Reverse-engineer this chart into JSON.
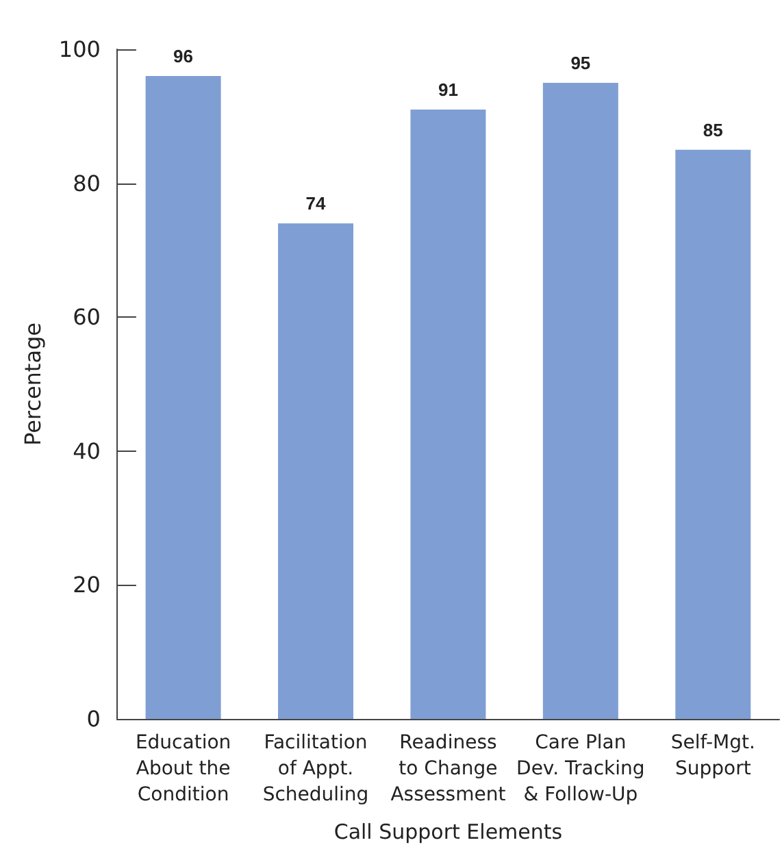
{
  "chart_data": {
    "type": "bar",
    "xlabel": "Call Support Elements",
    "ylabel": "Percentage",
    "categories": [
      "Education\nAbout the\nCondition",
      "Facilitation\nof Appt.\nScheduling",
      "Readiness\nto Change\nAssessment",
      "Care Plan\nDev. Tracking\n& Follow-Up",
      "Self-Mgt.\nSupport"
    ],
    "values": [
      96,
      74,
      91,
      95,
      85
    ],
    "color": "#7f9fd4",
    "ylim": [
      0,
      100
    ],
    "yticks": [
      0,
      20,
      40,
      60,
      80,
      100
    ],
    "data_labels": true,
    "grid": false
  }
}
